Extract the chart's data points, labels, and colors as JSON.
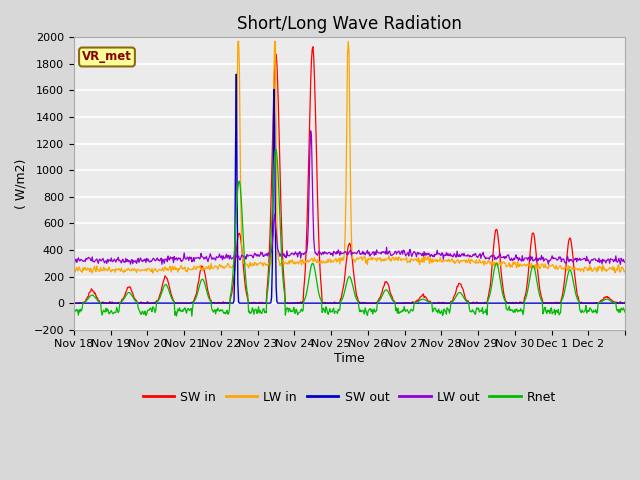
{
  "title": "Short/Long Wave Radiation",
  "ylabel": "( W/m2)",
  "xlabel": "Time",
  "ylim": [
    -200,
    2000
  ],
  "xlim": [
    0,
    15
  ],
  "x_tick_positions": [
    0,
    1,
    2,
    3,
    4,
    5,
    6,
    7,
    8,
    9,
    10,
    11,
    12,
    13,
    14,
    15
  ],
  "x_tick_labels": [
    "Nov 18",
    "Nov 19",
    "Nov 20",
    "Nov 21",
    "Nov 22",
    "Nov 23",
    "Nov 24",
    "Nov 25",
    "Nov 26",
    "Nov 27",
    "Nov 28",
    "Nov 29",
    "Nov 30",
    "Dec 1",
    "Dec 2",
    ""
  ],
  "yticks": [
    -200,
    0,
    200,
    400,
    600,
    800,
    1000,
    1200,
    1400,
    1600,
    1800,
    2000
  ],
  "colors": {
    "SW_in": "#ff0000",
    "LW_in": "#ffa500",
    "SW_out": "#0000cd",
    "LW_out": "#9400d3",
    "Rnet": "#00bb00"
  },
  "legend_labels": [
    "SW in",
    "LW in",
    "SW out",
    "LW out",
    "Rnet"
  ],
  "station_label": "VR_met",
  "fig_facecolor": "#d8d8d8",
  "ax_facecolor": "#ebebeb",
  "title_fontsize": 12,
  "axis_fontsize": 9,
  "tick_fontsize": 8
}
